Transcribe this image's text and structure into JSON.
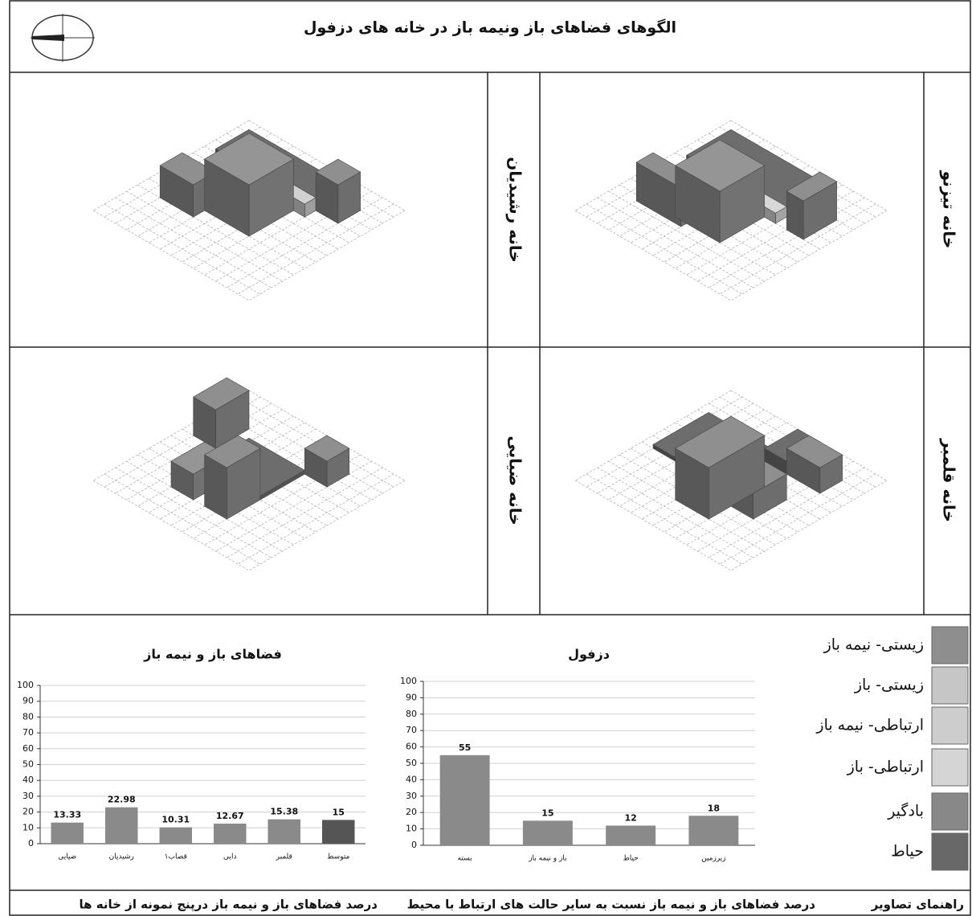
{
  "title": "الگوهای فضاهای باز ونیمه باز در خانه های دزفول",
  "houses": [
    "خانه رشیدیان",
    "خانه تیزنو",
    "خانه ضیایی",
    "خانه قلمبر"
  ],
  "legend": [
    {
      "label": "زیستی- نیمه باز",
      "color": "#8e8e8e"
    },
    {
      "label": "زیستی- باز",
      "color": "#c6c6c6"
    },
    {
      "label": "ارتباطی- نیمه باز",
      "color": "#cdcdcd"
    },
    {
      "label": "ارتباطی- باز",
      "color": "#d5d5d5"
    },
    {
      "label": "بادگیر",
      "color": "#888888"
    },
    {
      "label": "حیاط",
      "color": "#686868"
    }
  ],
  "chart_data": [
    {
      "type": "bar",
      "title": "دزفول",
      "categories": [
        "بسته",
        "باز و نیمه باز",
        "حیاط",
        "زیرزمین"
      ],
      "values": [
        55,
        15,
        12,
        18
      ],
      "color": "#8a8a8a",
      "ylim": [
        0,
        100
      ],
      "yticks": [
        0,
        10,
        20,
        30,
        40,
        50,
        60,
        70,
        80,
        90,
        100
      ],
      "grid": true
    },
    {
      "type": "bar",
      "title": "فضاهای باز و نیمه باز",
      "categories": [
        "ضیایی",
        "رشیدیان",
        "قصاب۱",
        "دایی",
        "قلمبر",
        "متوسط"
      ],
      "values": [
        13.33,
        22.98,
        10.31,
        12.67,
        15.38,
        15
      ],
      "colors": [
        "#8a8a8a",
        "#8a8a8a",
        "#8a8a8a",
        "#8a8a8a",
        "#8a8a8a",
        "#555555"
      ],
      "ylim": [
        0,
        100
      ],
      "yticks": [
        0,
        10,
        20,
        30,
        40,
        50,
        60,
        70,
        80,
        90,
        100
      ],
      "grid": true
    }
  ],
  "captions": [
    "راهنمای تصاویر",
    "درصد فضاهای باز و نیمه باز نسبت به سایر حالت های ارتباط با محیط",
    "درصد فضاهای باز و نیمه باز درپنج نمونه از خانه ها"
  ]
}
